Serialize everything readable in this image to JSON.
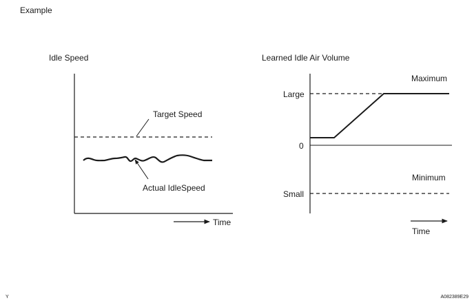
{
  "heading": "Example",
  "left_chart": {
    "title": "Idle Speed",
    "target_label": "Target Speed",
    "actual_label": "Actual IdleSpeed",
    "x_label": "Time"
  },
  "right_chart": {
    "title": "Learned Idle Air Volume",
    "maximum_label": "Maximum",
    "large_label": "Large",
    "zero_label": "0",
    "minimum_label": "Minimum",
    "small_label": "Small",
    "x_label": "Time"
  },
  "footer": {
    "left_mark": "Y",
    "figure_code": "A082389E29"
  }
}
